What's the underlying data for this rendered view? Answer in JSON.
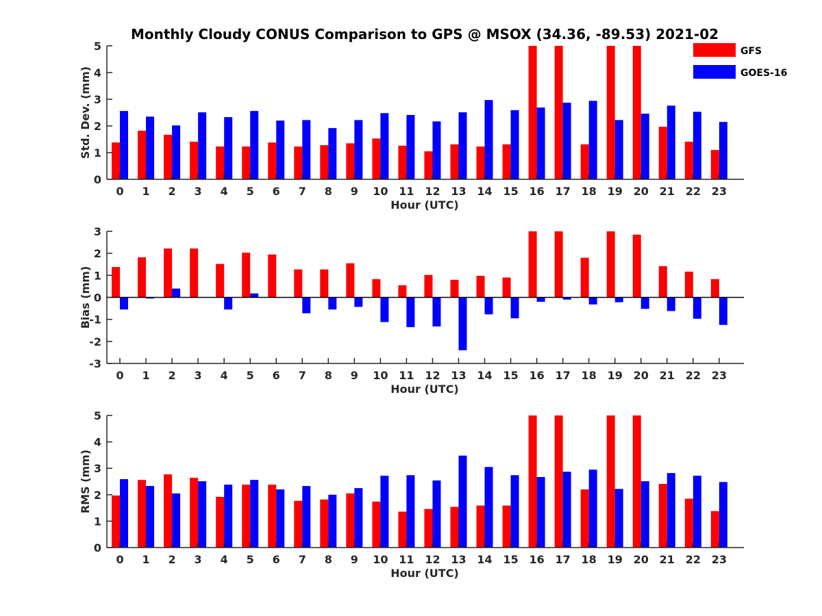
{
  "figure": {
    "title": "Monthly Cloudy CONUS Comparison to GPS @ MSOX (34.36, -89.53) 2021-02"
  },
  "legend": {
    "placement": "top-right",
    "entries": [
      {
        "name": "GFS",
        "color": "#ff0000"
      },
      {
        "name": "GOES-16",
        "color": "#0000ff"
      }
    ]
  },
  "chart_data": [
    {
      "type": "bar",
      "xlabel": "Hour (UTC)",
      "ylabel": "Std. Dev. (mm)",
      "ylim": [
        0,
        5
      ],
      "yticks": [
        0,
        1,
        2,
        3,
        4,
        5
      ],
      "categories": [
        "0",
        "1",
        "2",
        "3",
        "4",
        "5",
        "6",
        "7",
        "8",
        "9",
        "10",
        "11",
        "12",
        "13",
        "14",
        "15",
        "16",
        "17",
        "18",
        "19",
        "20",
        "21",
        "22",
        "23"
      ],
      "series": [
        {
          "name": "GFS",
          "color": "#ff0000",
          "values": [
            1.38,
            1.82,
            1.67,
            1.41,
            1.23,
            1.23,
            1.38,
            1.23,
            1.28,
            1.35,
            1.53,
            1.26,
            1.05,
            1.31,
            1.23,
            1.31,
            5.0,
            5.0,
            1.31,
            5.0,
            5.0,
            1.97,
            1.41,
            1.1
          ]
        },
        {
          "name": "GOES-16",
          "color": "#0000ff",
          "values": [
            2.56,
            2.35,
            2.02,
            2.51,
            2.33,
            2.56,
            2.2,
            2.22,
            1.92,
            2.22,
            2.48,
            2.41,
            2.17,
            2.51,
            2.97,
            2.59,
            2.69,
            2.87,
            2.94,
            2.22,
            2.46,
            2.76,
            2.53,
            2.15
          ]
        }
      ]
    },
    {
      "type": "bar",
      "xlabel": "Hour (UTC)",
      "ylabel": "Bias (mm)",
      "ylim": [
        -3,
        3
      ],
      "yticks": [
        -3,
        -2,
        -1,
        0,
        1,
        2,
        3
      ],
      "categories": [
        "0",
        "1",
        "2",
        "3",
        "4",
        "5",
        "6",
        "7",
        "8",
        "9",
        "10",
        "11",
        "12",
        "13",
        "14",
        "15",
        "16",
        "17",
        "18",
        "19",
        "20",
        "21",
        "22",
        "23"
      ],
      "series": [
        {
          "name": "GFS",
          "color": "#ff0000",
          "values": [
            1.38,
            1.82,
            2.22,
            2.22,
            1.52,
            2.03,
            1.95,
            1.27,
            1.27,
            1.55,
            0.83,
            0.55,
            1.02,
            0.8,
            0.98,
            0.9,
            3.0,
            3.0,
            1.8,
            3.0,
            2.85,
            1.42,
            1.17,
            0.83
          ]
        },
        {
          "name": "GOES-16",
          "color": "#0000ff",
          "values": [
            -0.55,
            -0.05,
            0.4,
            0.0,
            -0.55,
            0.18,
            0.0,
            -0.72,
            -0.55,
            -0.43,
            -1.12,
            -1.35,
            -1.32,
            -2.4,
            -0.77,
            -0.95,
            -0.2,
            -0.1,
            -0.32,
            -0.22,
            -0.52,
            -0.62,
            -0.97,
            -1.25
          ]
        }
      ]
    },
    {
      "type": "bar",
      "xlabel": "Hour (UTC)",
      "ylabel": "RMS (mm)",
      "ylim": [
        0,
        5
      ],
      "yticks": [
        0,
        1,
        2,
        3,
        4,
        5
      ],
      "categories": [
        "0",
        "1",
        "2",
        "3",
        "4",
        "5",
        "6",
        "7",
        "8",
        "9",
        "10",
        "11",
        "12",
        "13",
        "14",
        "15",
        "16",
        "17",
        "18",
        "19",
        "20",
        "21",
        "22",
        "23"
      ],
      "series": [
        {
          "name": "GFS",
          "color": "#ff0000",
          "values": [
            1.97,
            2.56,
            2.77,
            2.64,
            1.92,
            2.38,
            2.38,
            1.77,
            1.82,
            2.05,
            1.74,
            1.36,
            1.46,
            1.54,
            1.59,
            1.59,
            5.0,
            5.0,
            2.2,
            5.0,
            5.0,
            2.41,
            1.85,
            1.38
          ]
        },
        {
          "name": "GOES-16",
          "color": "#0000ff",
          "values": [
            2.59,
            2.33,
            2.05,
            2.51,
            2.38,
            2.56,
            2.2,
            2.33,
            2.0,
            2.25,
            2.72,
            2.74,
            2.54,
            3.48,
            3.05,
            2.74,
            2.67,
            2.87,
            2.95,
            2.22,
            2.51,
            2.82,
            2.72,
            2.48
          ]
        }
      ]
    }
  ]
}
